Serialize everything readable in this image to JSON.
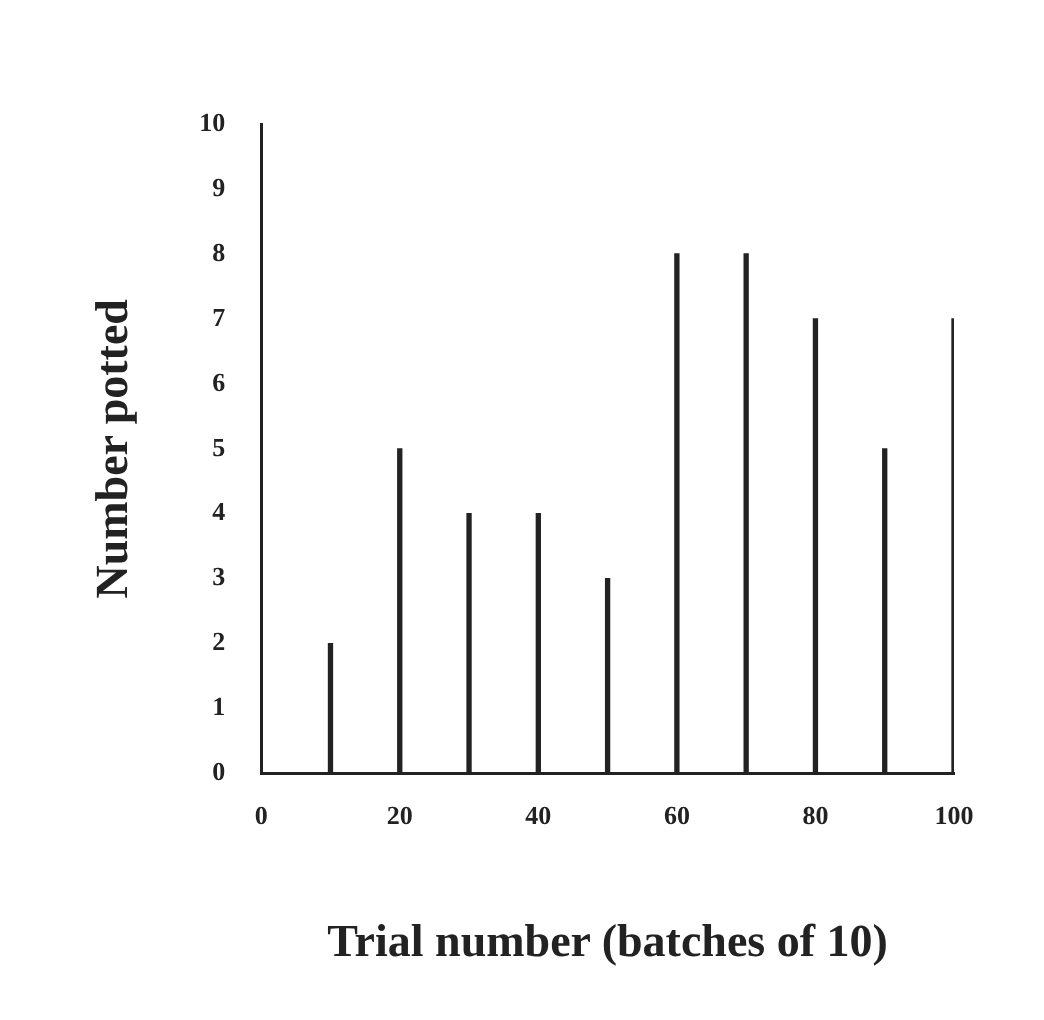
{
  "chart_data": {
    "type": "bar",
    "xlabel": "Trial number (batches of 10)",
    "ylabel": "Number potted",
    "x": [
      10,
      20,
      30,
      40,
      50,
      60,
      70,
      80,
      90,
      100
    ],
    "values": [
      2,
      5,
      4,
      4,
      3,
      8,
      8,
      7,
      5,
      7
    ],
    "color": "#222222",
    "xlim": [
      0,
      100
    ],
    "xticks": [
      0,
      20,
      40,
      60,
      80,
      100
    ],
    "ylim": [
      0,
      10
    ],
    "yticks": [
      0,
      1,
      2,
      3,
      4,
      5,
      6,
      7,
      8,
      9,
      10
    ],
    "grid": false,
    "legend": false
  }
}
